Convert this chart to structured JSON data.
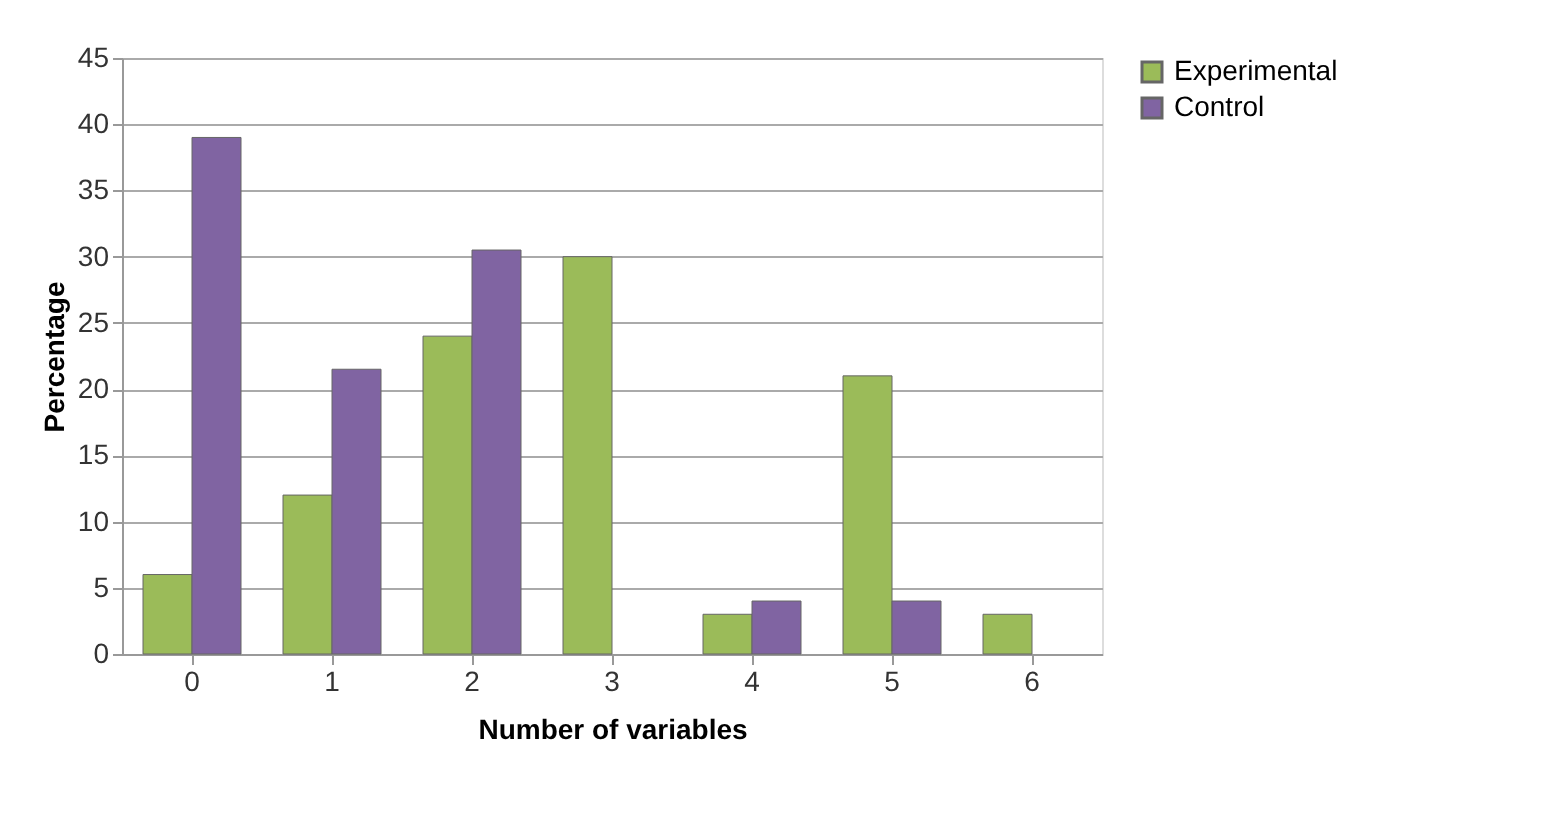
{
  "chart_data": {
    "type": "bar",
    "xlabel": "Number of variables",
    "ylabel": "Percentage",
    "categories": [
      "0",
      "1",
      "2",
      "3",
      "4",
      "5",
      "6"
    ],
    "series": [
      {
        "name": "Experimental",
        "color": "#9bbb59",
        "values": [
          6,
          12,
          24,
          30,
          3,
          21,
          3
        ]
      },
      {
        "name": "Control",
        "color": "#8064a2",
        "values": [
          39,
          21.5,
          30.5,
          null,
          4,
          4,
          null
        ]
      }
    ],
    "ylim": [
      0,
      45
    ],
    "yticks": [
      0,
      5,
      10,
      15,
      20,
      25,
      30,
      35,
      40,
      45
    ],
    "grid": "y",
    "legend": "right"
  }
}
